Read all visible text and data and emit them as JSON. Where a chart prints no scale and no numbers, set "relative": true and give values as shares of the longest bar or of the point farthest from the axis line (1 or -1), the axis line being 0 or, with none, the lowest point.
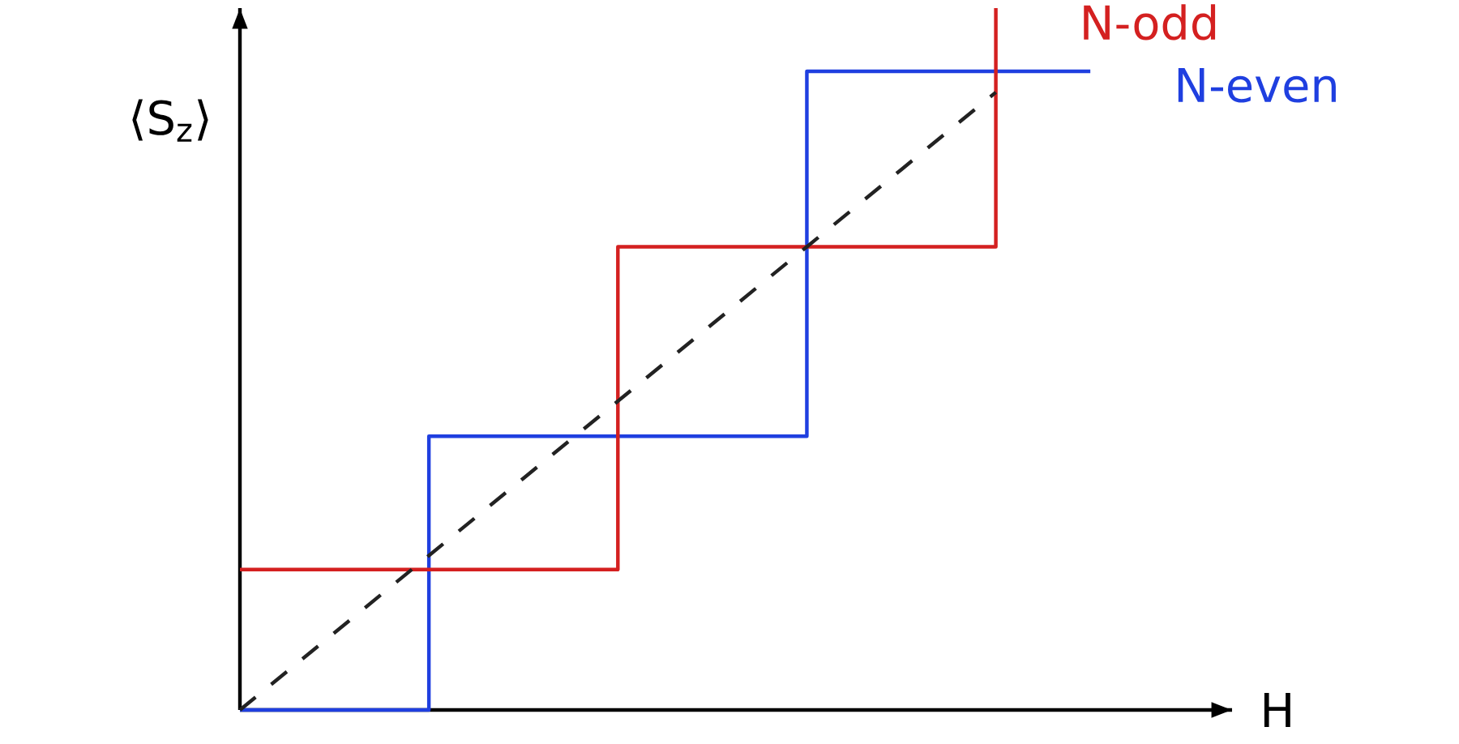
{
  "chart_data": {
    "type": "step",
    "relative": true,
    "xlabel": "H",
    "ylabel": "⟨S$_{z}$⟩",
    "categories": [
      null,
      null,
      null,
      null,
      null,
      null,
      null,
      null,
      null,
      null,
      null
    ],
    "series": [
      {
        "name": "N-even",
        "color": "#1f3fe0",
        "values": [
          0,
          0,
          0.39,
          0.39,
          0.39,
          0.39,
          0.91,
          0.91,
          0.91,
          0.91,
          null
        ]
      },
      {
        "name": "N-odd",
        "color": "#d42020",
        "values": [
          0.2,
          0.2,
          0.2,
          0.2,
          0.66,
          0.66,
          0.66,
          0.66,
          1.0,
          null,
          null
        ]
      },
      {
        "type": "line",
        "line_style": "dashed",
        "color": "#222222",
        "values": [
          0,
          0.11,
          0.22,
          0.33,
          0.44,
          0.55,
          0.66,
          0.77,
          0.88,
          null,
          null
        ]
      }
    ]
  }
}
